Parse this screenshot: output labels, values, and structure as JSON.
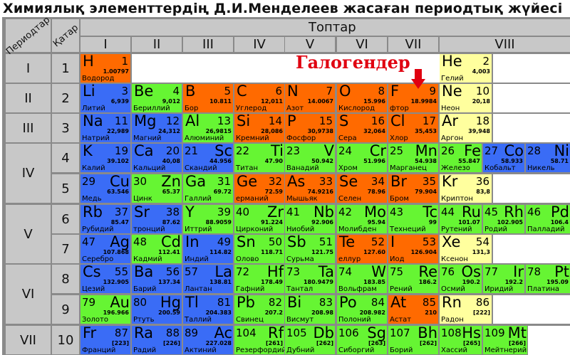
{
  "title": "Химиялық элементтердің Д.И.Менделеев жасаған периодтық жүйесі",
  "headers": {
    "periods": "Периодтар",
    "rows": "Қатар",
    "groups": "Топтар"
  },
  "groups": [
    "I",
    "II",
    "III",
    "IV",
    "V",
    "VI",
    "VII",
    "VIII"
  ],
  "periods": [
    {
      "label": "I",
      "rows": [
        1
      ]
    },
    {
      "label": "II",
      "rows": [
        2
      ]
    },
    {
      "label": "III",
      "rows": [
        3
      ]
    },
    {
      "label": "IV",
      "rows": [
        4,
        5
      ]
    },
    {
      "label": "V",
      "rows": [
        6,
        7
      ]
    },
    {
      "label": "VI",
      "rows": [
        8,
        9
      ]
    },
    {
      "label": "VII",
      "rows": [
        10
      ]
    }
  ],
  "series": [
    "1",
    "2",
    "3",
    "4",
    "5",
    "6",
    "7",
    "8",
    "9",
    "10"
  ],
  "annotation": "Галогендер",
  "colors": {
    "orange": "#ff6a00",
    "blue": "#3a6cf6",
    "green": "#66f533",
    "yellow": "#ffff9e",
    "header": "#c8c8c8",
    "annotation": "#e00010"
  },
  "elements": [
    {
      "row": 1,
      "group": 1,
      "sym": "H",
      "num": "1",
      "mass": "1.00797",
      "name": "Водород",
      "color": "orange",
      "align": "L"
    },
    {
      "row": 1,
      "group": 8,
      "sub": 0,
      "sym": "He",
      "num": "2",
      "mass": "4,003",
      "name": "Гелий",
      "color": "yellow",
      "align": "L"
    },
    {
      "row": 2,
      "group": 1,
      "sym": "Li",
      "num": "3",
      "mass": "6,939",
      "name": "Литий",
      "color": "blue",
      "align": "L"
    },
    {
      "row": 2,
      "group": 2,
      "sym": "Be",
      "num": "4",
      "mass": "9,012",
      "name": "Бериллий",
      "color": "green",
      "align": "L"
    },
    {
      "row": 2,
      "group": 3,
      "sym": "B",
      "num": "5",
      "mass": "10.811",
      "name": "Бор",
      "color": "orange",
      "align": "L"
    },
    {
      "row": 2,
      "group": 4,
      "sym": "C",
      "num": "6",
      "mass": "12,011",
      "name": "Углерод",
      "color": "orange",
      "align": "L"
    },
    {
      "row": 2,
      "group": 5,
      "sym": "N",
      "num": "7",
      "mass": "14.0067",
      "name": "Азот",
      "color": "orange",
      "align": "L"
    },
    {
      "row": 2,
      "group": 6,
      "sym": "O",
      "num": "8",
      "mass": "15.996",
      "name": "Кислород",
      "color": "orange",
      "align": "L"
    },
    {
      "row": 2,
      "group": 7,
      "sym": "F",
      "num": "9",
      "mass": "18.9984",
      "name": "фтор",
      "color": "orange",
      "align": "L"
    },
    {
      "row": 2,
      "group": 8,
      "sub": 0,
      "sym": "Ne",
      "num": "10",
      "mass": "20,18",
      "name": "Неон",
      "color": "yellow",
      "align": "L"
    },
    {
      "row": 3,
      "group": 1,
      "sym": "Na",
      "num": "11",
      "mass": "22,989",
      "name": "Натрий",
      "color": "blue",
      "align": "L"
    },
    {
      "row": 3,
      "group": 2,
      "sym": "Mg",
      "num": "12",
      "mass": "24,312",
      "name": "Магний",
      "color": "blue",
      "align": "L"
    },
    {
      "row": 3,
      "group": 3,
      "sym": "Al",
      "num": "13",
      "mass": "26,9815",
      "name": "Алюминий",
      "color": "green",
      "align": "L"
    },
    {
      "row": 3,
      "group": 4,
      "sym": "Si",
      "num": "14",
      "mass": "28,086",
      "name": "Кремний",
      "color": "orange",
      "align": "L"
    },
    {
      "row": 3,
      "group": 5,
      "sym": "P",
      "num": "15",
      "mass": "30,9738",
      "name": "Фосфор",
      "color": "orange",
      "align": "L"
    },
    {
      "row": 3,
      "group": 6,
      "sym": "S",
      "num": "16",
      "mass": "32,064",
      "name": "Сера",
      "color": "orange",
      "align": "L"
    },
    {
      "row": 3,
      "group": 7,
      "sym": "Cl",
      "num": "17",
      "mass": "35,453",
      "name": "Хлор",
      "color": "orange",
      "align": "L"
    },
    {
      "row": 3,
      "group": 8,
      "sub": 0,
      "sym": "Ar",
      "num": "18",
      "mass": "39,948",
      "name": "Аргон",
      "color": "yellow",
      "align": "L"
    },
    {
      "row": 4,
      "group": 1,
      "sym": "K",
      "num": "19",
      "mass": "39.102",
      "name": "Калий",
      "color": "blue",
      "align": "L"
    },
    {
      "row": 4,
      "group": 2,
      "sym": "Ca",
      "num": "20",
      "mass": "40,08",
      "name": "Кальций",
      "color": "blue",
      "align": "L"
    },
    {
      "row": 4,
      "group": 3,
      "sym": "Sc",
      "num": "21",
      "mass": "44.956",
      "name": "Скандий",
      "color": "blue",
      "align": "R"
    },
    {
      "row": 4,
      "group": 4,
      "sym": "Ti",
      "num": "22",
      "mass": "47.90",
      "name": "Титан",
      "color": "green",
      "align": "R"
    },
    {
      "row": 4,
      "group": 5,
      "sym": "V",
      "num": "23",
      "mass": "50.942",
      "name": "Ванадий",
      "color": "green",
      "align": "R"
    },
    {
      "row": 4,
      "group": 6,
      "sym": "Cr",
      "num": "24",
      "mass": "51.996",
      "name": "Хром",
      "color": "green",
      "align": "R"
    },
    {
      "row": 4,
      "group": 7,
      "sym": "Mn",
      "num": "25",
      "mass": "54.938",
      "name": "Марганец",
      "color": "green",
      "align": "R"
    },
    {
      "row": 4,
      "group": 8,
      "sub": 0,
      "sym": "Fe",
      "num": "26",
      "mass": "55.847",
      "name": "Железо",
      "color": "green",
      "align": "R"
    },
    {
      "row": 4,
      "group": 8,
      "sub": 1,
      "sym": "Co",
      "num": "27",
      "mass": "58.933",
      "name": "Кобальт",
      "color": "blue",
      "align": "R"
    },
    {
      "row": 4,
      "group": 8,
      "sub": 2,
      "sym": "Ni",
      "num": "28",
      "mass": "58.71",
      "name": "Никель",
      "color": "blue",
      "align": "R"
    },
    {
      "row": 5,
      "group": 1,
      "sym": "Cu",
      "num": "29",
      "mass": "63.546",
      "name": "Медь",
      "color": "blue",
      "align": "R"
    },
    {
      "row": 5,
      "group": 2,
      "sym": "Zn",
      "num": "30",
      "mass": "65.37",
      "name": "Цинк",
      "color": "green",
      "align": "R"
    },
    {
      "row": 5,
      "group": 3,
      "sym": "Ga",
      "num": "31",
      "mass": "69.72",
      "name": "Галлий",
      "color": "green",
      "align": "L"
    },
    {
      "row": 5,
      "group": 4,
      "sym": "Ge",
      "num": "32",
      "mass": "72.59",
      "name": "ерманий",
      "color": "orange",
      "align": "L"
    },
    {
      "row": 5,
      "group": 5,
      "sym": "As",
      "num": "33",
      "mass": "74.9216",
      "name": "Мышьяк",
      "color": "orange",
      "align": "L"
    },
    {
      "row": 5,
      "group": 6,
      "sym": "Se",
      "num": "34",
      "mass": "78.96",
      "name": "Селен",
      "color": "orange",
      "align": "L"
    },
    {
      "row": 5,
      "group": 7,
      "sym": "Br",
      "num": "35",
      "mass": "79.904",
      "name": "Бром",
      "color": "orange",
      "align": "L"
    },
    {
      "row": 5,
      "group": 8,
      "sub": 0,
      "sym": "Kr",
      "num": "36",
      "mass": "83,8",
      "name": "Криптон",
      "color": "yellow",
      "align": "L"
    },
    {
      "row": 6,
      "group": 1,
      "sym": "Rb",
      "num": "37",
      "mass": "85.47",
      "name": "Рубидий",
      "color": "blue",
      "align": "L"
    },
    {
      "row": 6,
      "group": 2,
      "sym": "Sr",
      "num": "38",
      "mass": "87.62",
      "name": "тронций",
      "color": "blue",
      "align": "L"
    },
    {
      "row": 6,
      "group": 3,
      "sym": "Y",
      "num": "39",
      "mass": "88.9059",
      "name": "Иттрий",
      "color": "green",
      "align": "L"
    },
    {
      "row": 6,
      "group": 4,
      "sym": "Zr",
      "num": "40",
      "mass": "91.224",
      "name": "Цирконий",
      "color": "green",
      "align": "R"
    },
    {
      "row": 6,
      "group": 5,
      "sym": "Nb",
      "num": "41",
      "mass": "92.906",
      "name": "Ниобий",
      "color": "green",
      "align": "R"
    },
    {
      "row": 6,
      "group": 6,
      "sym": "Mo",
      "num": "42",
      "mass": "95.94",
      "name": "Молибден",
      "color": "green",
      "align": "R"
    },
    {
      "row": 6,
      "group": 7,
      "sym": "Tc",
      "num": "43",
      "mass": "99",
      "name": "Технеций",
      "color": "green",
      "align": "R"
    },
    {
      "row": 6,
      "group": 8,
      "sub": 0,
      "sym": "Ru",
      "num": "44",
      "mass": "101.07",
      "name": "Рутений",
      "color": "green",
      "align": "R"
    },
    {
      "row": 6,
      "group": 8,
      "sub": 1,
      "sym": "Rh",
      "num": "45",
      "mass": "102.905",
      "name": "Родий",
      "color": "green",
      "align": "R"
    },
    {
      "row": 6,
      "group": 8,
      "sub": 2,
      "sym": "Pd",
      "num": "46",
      "mass": "106.4",
      "name": "Палладий",
      "color": "green",
      "align": "R"
    },
    {
      "row": 7,
      "group": 1,
      "sym": "Ag",
      "num": "47",
      "mass": "107.868",
      "name": "Серебро",
      "color": "blue",
      "align": "R"
    },
    {
      "row": 7,
      "group": 2,
      "sym": "Cd",
      "num": "48",
      "mass": "112.41",
      "name": "Кадмий",
      "color": "green",
      "align": "R"
    },
    {
      "row": 7,
      "group": 3,
      "sym": "In",
      "num": "49",
      "mass": "114.82",
      "name": "Индий",
      "color": "blue",
      "align": "L"
    },
    {
      "row": 7,
      "group": 4,
      "sym": "Sn",
      "num": "50",
      "mass": "118.71",
      "name": "Олово",
      "color": "green",
      "align": "L"
    },
    {
      "row": 7,
      "group": 5,
      "sym": "Sb",
      "num": "51",
      "mass": "121.75",
      "name": "Сурьма",
      "color": "green",
      "align": "L"
    },
    {
      "row": 7,
      "group": 6,
      "sym": "Te",
      "num": "52",
      "mass": "127.60",
      "name": "еллур",
      "color": "orange",
      "align": "L"
    },
    {
      "row": 7,
      "group": 7,
      "sym": "I",
      "num": "53",
      "mass": "126.904",
      "name": "Иод",
      "color": "orange",
      "align": "L"
    },
    {
      "row": 7,
      "group": 8,
      "sub": 0,
      "sym": "Xe",
      "num": "54",
      "mass": "131,3",
      "name": "Ксенон",
      "color": "yellow",
      "align": "L"
    },
    {
      "row": 8,
      "group": 1,
      "sym": "Cs",
      "num": "55",
      "mass": "132.905",
      "name": "Цезий",
      "color": "blue",
      "align": "L"
    },
    {
      "row": 8,
      "group": 2,
      "sym": "Ba",
      "num": "56",
      "mass": "137.34",
      "name": "Барий",
      "color": "blue",
      "align": "L"
    },
    {
      "row": 8,
      "group": 3,
      "sym": "La",
      "num": "57",
      "mass": "138.81",
      "name": "Лантан",
      "color": "blue",
      "align": "R"
    },
    {
      "row": 8,
      "group": 4,
      "sym": "Hf",
      "num": "72",
      "mass": "178.49",
      "name": "Гафний",
      "color": "green",
      "align": "R"
    },
    {
      "row": 8,
      "group": 5,
      "sym": "Ta",
      "num": "73",
      "mass": "180.9479",
      "name": "Тантал",
      "color": "green",
      "align": "R"
    },
    {
      "row": 8,
      "group": 6,
      "sym": "W",
      "num": "74",
      "mass": "183.85",
      "name": "Вольфрам",
      "color": "green",
      "align": "R"
    },
    {
      "row": 8,
      "group": 7,
      "sym": "Re",
      "num": "75",
      "mass": "186.2",
      "name": "Рений",
      "color": "green",
      "align": "R"
    },
    {
      "row": 8,
      "group": 8,
      "sub": 0,
      "sym": "Os",
      "num": "76",
      "mass": "190.2",
      "name": "Осмий",
      "color": "green",
      "align": "R"
    },
    {
      "row": 8,
      "group": 8,
      "sub": 1,
      "sym": "Ir",
      "num": "77",
      "mass": "192.2",
      "name": "Иридий",
      "color": "green",
      "align": "R"
    },
    {
      "row": 8,
      "group": 8,
      "sub": 2,
      "sym": "Pt",
      "num": "78",
      "mass": "195.09",
      "name": "Платина",
      "color": "green",
      "align": "R"
    },
    {
      "row": 9,
      "group": 1,
      "sym": "Au",
      "num": "79",
      "mass": "196.966",
      "name": "Золото",
      "color": "green",
      "align": "R"
    },
    {
      "row": 9,
      "group": 2,
      "sym": "Hg",
      "num": "80",
      "mass": "200.59",
      "name": "Ртуть",
      "color": "blue",
      "align": "R"
    },
    {
      "row": 9,
      "group": 3,
      "sym": "Tl",
      "num": "81",
      "mass": "204.383",
      "name": "Таллий",
      "color": "blue",
      "align": "L"
    },
    {
      "row": 9,
      "group": 4,
      "sym": "Pb",
      "num": "82",
      "mass": "207.2",
      "name": "Свинец",
      "color": "green",
      "align": "L"
    },
    {
      "row": 9,
      "group": 5,
      "sym": "Bi",
      "num": "83",
      "mass": "208.98",
      "name": "Висмут",
      "color": "green",
      "align": "L"
    },
    {
      "row": 9,
      "group": 6,
      "sym": "Po",
      "num": "84",
      "mass": "208.982",
      "name": "Полоний",
      "color": "green",
      "align": "L"
    },
    {
      "row": 9,
      "group": 7,
      "sym": "At",
      "num": "85",
      "mass": "210",
      "name": "Астат",
      "color": "orange",
      "align": "L"
    },
    {
      "row": 9,
      "group": 8,
      "sub": 0,
      "sym": "Rn",
      "num": "86",
      "mass": "[222]",
      "name": "Радон",
      "color": "yellow",
      "align": "L"
    },
    {
      "row": 10,
      "group": 1,
      "sym": "Fr",
      "num": "87",
      "mass": "[223]",
      "name": "Франций",
      "color": "blue",
      "align": "L"
    },
    {
      "row": 10,
      "group": 2,
      "sym": "Ra",
      "num": "88",
      "mass": "[226]",
      "name": "Радий",
      "color": "blue",
      "align": "L"
    },
    {
      "row": 10,
      "group": 3,
      "sym": "Ac",
      "num": "89",
      "mass": "227.028",
      "name": "Актиний",
      "color": "blue",
      "align": "R"
    },
    {
      "row": 10,
      "group": 4,
      "sym": "Rf",
      "num": "104",
      "mass": "[261]",
      "name": "Резерфордий",
      "color": "green",
      "align": "R"
    },
    {
      "row": 10,
      "group": 5,
      "sym": "Db",
      "num": "105",
      "mass": "[262]",
      "name": "Дубний",
      "color": "green",
      "align": "R"
    },
    {
      "row": 10,
      "group": 6,
      "sym": "Sg",
      "num": "106",
      "mass": "[263]",
      "name": "Сиборгий",
      "color": "green",
      "align": "R"
    },
    {
      "row": 10,
      "group": 7,
      "sym": "Bh",
      "num": "107",
      "mass": "[262]",
      "name": "Борий",
      "color": "green",
      "align": "R"
    },
    {
      "row": 10,
      "group": 8,
      "sub": 0,
      "sym": "Hs",
      "num": "108",
      "mass": "[265]",
      "name": "Хассий",
      "color": "green",
      "align": "R"
    },
    {
      "row": 10,
      "group": 8,
      "sub": 1,
      "sym": "Mt",
      "num": "109",
      "mass": "[266]",
      "name": "Мейтнерий",
      "color": "green",
      "align": "R"
    }
  ]
}
